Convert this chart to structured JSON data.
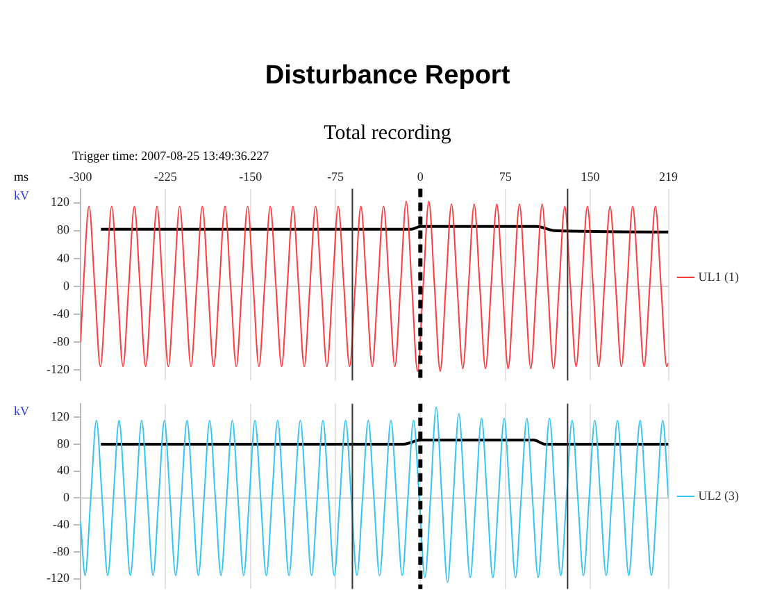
{
  "chart_data": [
    {
      "type": "line",
      "title": "Disturbance Report",
      "subtitle": "Total recording",
      "annotations": [
        "Trigger time: 2007-08-25 13:49:36.227"
      ],
      "xlabel": "ms",
      "ylabel": "kV",
      "xlim": [
        -300,
        219
      ],
      "xticks": [
        -300,
        -225,
        -150,
        -75,
        0,
        75,
        150,
        219
      ],
      "ylim": [
        -135,
        140
      ],
      "yticks": [
        -120,
        -80,
        -40,
        0,
        40,
        80,
        120
      ],
      "grid": "x",
      "legend": "right",
      "tick_labels": "xy",
      "ref_lines": [
        {
          "axis": "x",
          "value": 0,
          "color": "#000000",
          "line_style": "dashed"
        },
        {
          "axis": "x",
          "value": -60,
          "color": "#333333"
        },
        {
          "axis": "x",
          "value": 130,
          "color": "#333333"
        },
        {
          "axis": "y",
          "value": 0,
          "color": "#cccccc"
        }
      ],
      "series": [
        {
          "name": "UL1 (1)",
          "color": "#ff3b3b",
          "x": [
            -300,
            -297.5,
            -292.5,
            -287.5,
            -282.5,
            -277.5,
            -272.5,
            -267.5,
            -262.5,
            -257.5,
            -252.5,
            -247.5,
            -242.5,
            -237.5,
            -232.5,
            -227.5,
            -222.5,
            -217.5,
            -212.5,
            -207.5,
            -202.5,
            -197.5,
            -192.5,
            -187.5,
            -182.5,
            -177.5,
            -172.5,
            -167.5,
            -162.5,
            -157.5,
            -152.5,
            -147.5,
            -142.5,
            -137.5,
            -132.5,
            -127.5,
            -122.5,
            -117.5,
            -112.5,
            -107.5,
            -102.5,
            -97.5,
            -92.5,
            -87.5,
            -82.5,
            -77.5,
            -72.5,
            -67.5,
            -62.5,
            -57.5,
            -52.5,
            -47.5,
            -42.5,
            -37.5,
            -32.5,
            -27.5,
            -22.5,
            -17.5,
            -12.5,
            -7.5,
            -2.5,
            2.5,
            7.5,
            12.5,
            17.5,
            22.5,
            27.5,
            32.5,
            37.5,
            42.5,
            47.5,
            52.5,
            57.5,
            62.5,
            67.5,
            72.5,
            77.5,
            82.5,
            87.5,
            92.5,
            97.5,
            102.5,
            107.5,
            112.5,
            117.5,
            122.5,
            127.5,
            132.5,
            137.5,
            142.5,
            147.5,
            152.5,
            157.5,
            162.5,
            167.5,
            172.5,
            177.5,
            182.5,
            187.5,
            192.5,
            197.5,
            202.5,
            207.5,
            212.5,
            217.5,
            219
          ],
          "values": [
            -80,
            0,
            115,
            0,
            -115,
            0,
            115,
            0,
            -115,
            0,
            115,
            0,
            -115,
            0,
            115,
            0,
            -115,
            0,
            115,
            0,
            -115,
            0,
            115,
            0,
            -115,
            0,
            115,
            0,
            -115,
            0,
            115,
            0,
            -115,
            0,
            115,
            0,
            -115,
            0,
            115,
            0,
            -115,
            0,
            115,
            0,
            -115,
            0,
            115,
            0,
            -115,
            0,
            115,
            0,
            -115,
            0,
            115,
            0,
            -115,
            0,
            122,
            0,
            -122,
            0,
            122,
            0,
            -122,
            0,
            118,
            0,
            -118,
            0,
            118,
            0,
            -118,
            0,
            118,
            0,
            -118,
            0,
            118,
            0,
            -118,
            0,
            118,
            0,
            -118,
            0,
            115,
            0,
            -115,
            0,
            115,
            0,
            -115,
            0,
            115,
            0,
            -115,
            0,
            115,
            0,
            -115,
            0,
            115,
            0,
            -115,
            -110
          ]
        },
        {
          "color": "#000000",
          "x": [
            -282,
            -8,
            0,
            103,
            118,
            219
          ],
          "values": [
            82,
            82,
            86,
            86,
            80,
            78
          ]
        }
      ]
    },
    {
      "type": "line",
      "ylabel": "kV",
      "xlim": [
        -300,
        219
      ],
      "xticks": [
        -300,
        -225,
        -150,
        -75,
        0,
        75,
        150,
        219
      ],
      "ylim": [
        -135,
        140
      ],
      "yticks": [
        -120,
        -80,
        -40,
        0,
        40,
        80,
        120
      ],
      "grid": "x",
      "legend": "right",
      "tick_labels": "y",
      "ref_lines": [
        {
          "axis": "x",
          "value": 0,
          "color": "#000000",
          "line_style": "dashed"
        },
        {
          "axis": "x",
          "value": -60,
          "color": "#333333"
        },
        {
          "axis": "x",
          "value": 130,
          "color": "#333333"
        },
        {
          "axis": "y",
          "value": 0,
          "color": "#cccccc"
        }
      ],
      "series": [
        {
          "name": "UL2 (3)",
          "color": "#33c4f5",
          "x": [
            -300,
            -296,
            -291,
            -286,
            -281,
            -276,
            -271,
            -266,
            -261,
            -256,
            -251,
            -246,
            -241,
            -236,
            -231,
            -226,
            -221,
            -216,
            -211,
            -206,
            -201,
            -196,
            -191,
            -186,
            -181,
            -176,
            -171,
            -166,
            -161,
            -156,
            -151,
            -146,
            -141,
            -136,
            -131,
            -126,
            -121,
            -116,
            -111,
            -106,
            -101,
            -96,
            -91,
            -86,
            -81,
            -76,
            -71,
            -66,
            -61,
            -56,
            -51,
            -46,
            -41,
            -36,
            -31,
            -26,
            -21,
            -16,
            -11,
            -6,
            -1,
            4,
            9,
            14,
            19,
            24,
            29,
            34,
            39,
            44,
            49,
            54,
            59,
            64,
            69,
            74,
            79,
            84,
            89,
            94,
            99,
            104,
            109,
            114,
            119,
            124,
            129,
            134,
            139,
            144,
            149,
            154,
            159,
            164,
            169,
            174,
            179,
            184,
            189,
            194,
            199,
            204,
            209,
            214,
            219
          ],
          "values": [
            -35,
            -115,
            0,
            115,
            0,
            -115,
            0,
            115,
            0,
            -115,
            0,
            115,
            0,
            -115,
            0,
            115,
            0,
            -115,
            0,
            115,
            0,
            -115,
            0,
            115,
            0,
            -115,
            0,
            115,
            0,
            -115,
            0,
            115,
            0,
            -115,
            0,
            115,
            0,
            -115,
            0,
            115,
            0,
            -115,
            0,
            115,
            0,
            -115,
            0,
            115,
            0,
            -115,
            0,
            115,
            0,
            -115,
            0,
            115,
            0,
            -115,
            0,
            115,
            0,
            -118,
            0,
            135,
            0,
            -125,
            0,
            125,
            0,
            -118,
            0,
            118,
            0,
            -118,
            0,
            118,
            0,
            -118,
            0,
            118,
            0,
            -118,
            0,
            118,
            0,
            -115,
            0,
            115,
            0,
            -115,
            0,
            115,
            0,
            -115,
            0,
            115,
            0,
            -115,
            0,
            115,
            0,
            -115,
            0,
            115,
            0
          ]
        },
        {
          "color": "#000000",
          "x": [
            -282,
            -15,
            0,
            100,
            110,
            219
          ],
          "values": [
            80,
            80,
            86,
            86,
            80,
            80
          ]
        }
      ]
    }
  ]
}
